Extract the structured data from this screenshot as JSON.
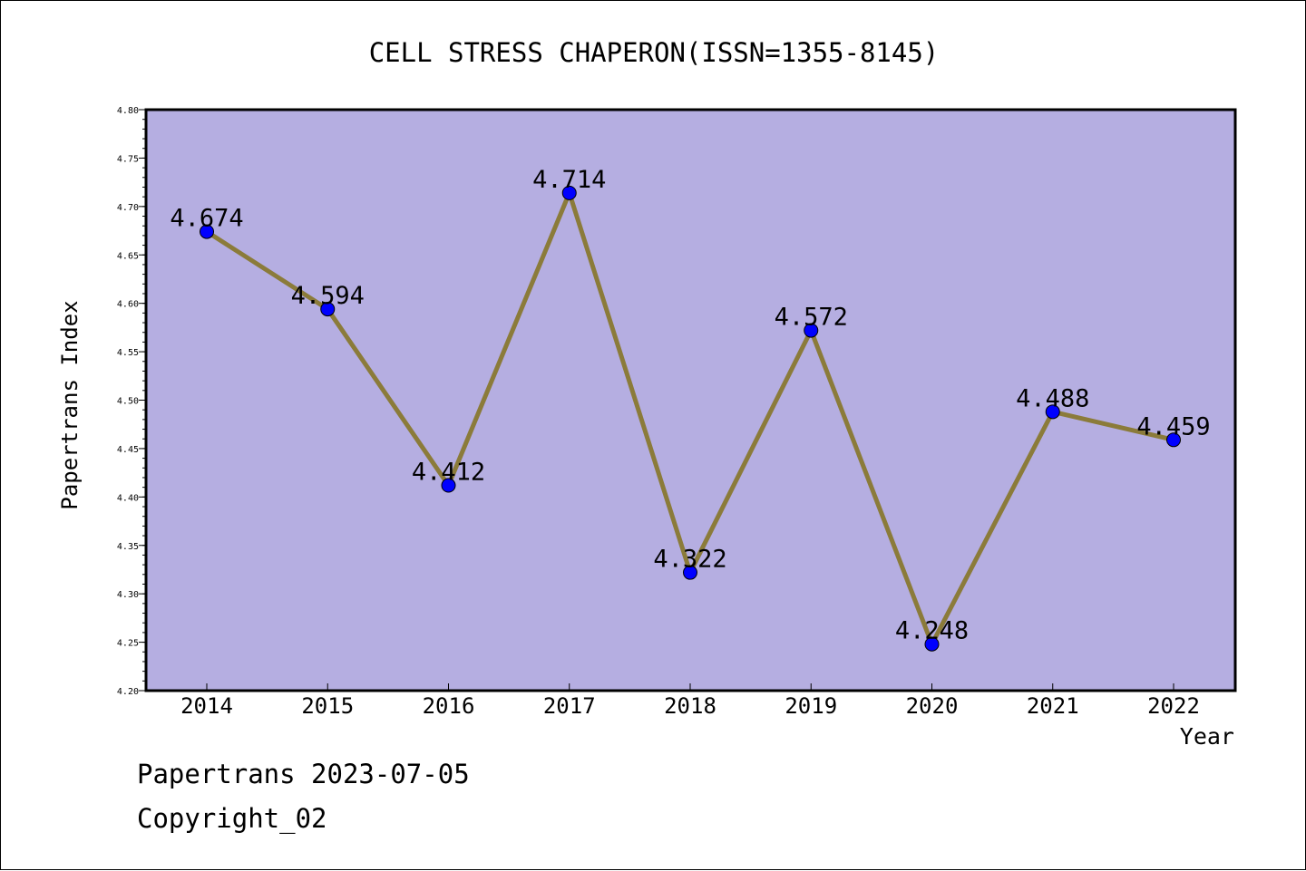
{
  "chart_data": {
    "type": "line",
    "title": "CELL STRESS CHAPERON(ISSN=1355-8145)",
    "xlabel": "Year",
    "ylabel": "Papertrans Index",
    "categories": [
      "2014",
      "2015",
      "2016",
      "2017",
      "2018",
      "2019",
      "2020",
      "2021",
      "2022"
    ],
    "series": [
      {
        "values": [
          4.674,
          4.594,
          4.412,
          4.714,
          4.322,
          4.572,
          4.248,
          4.488,
          4.459
        ]
      }
    ],
    "data_labels": [
      "4.674",
      "4.594",
      "4.412",
      "4.714",
      "4.322",
      "4.572",
      "4.248",
      "4.488",
      "4.459"
    ],
    "ylim": [
      4.2,
      4.8
    ],
    "yticks": [
      "4.20",
      "4.25",
      "4.30",
      "4.35",
      "4.40",
      "4.45",
      "4.50",
      "4.55",
      "4.60",
      "4.65",
      "4.70",
      "4.75",
      "4.80"
    ],
    "grid": false,
    "legend": "none",
    "colors": {
      "plot_background": "#b5aee1",
      "line": "#8b7b3a",
      "marker": "#0000ff"
    }
  },
  "footer": {
    "date_text": "Papertrans 2023-07-05",
    "copyright_text": "Copyright_02"
  }
}
